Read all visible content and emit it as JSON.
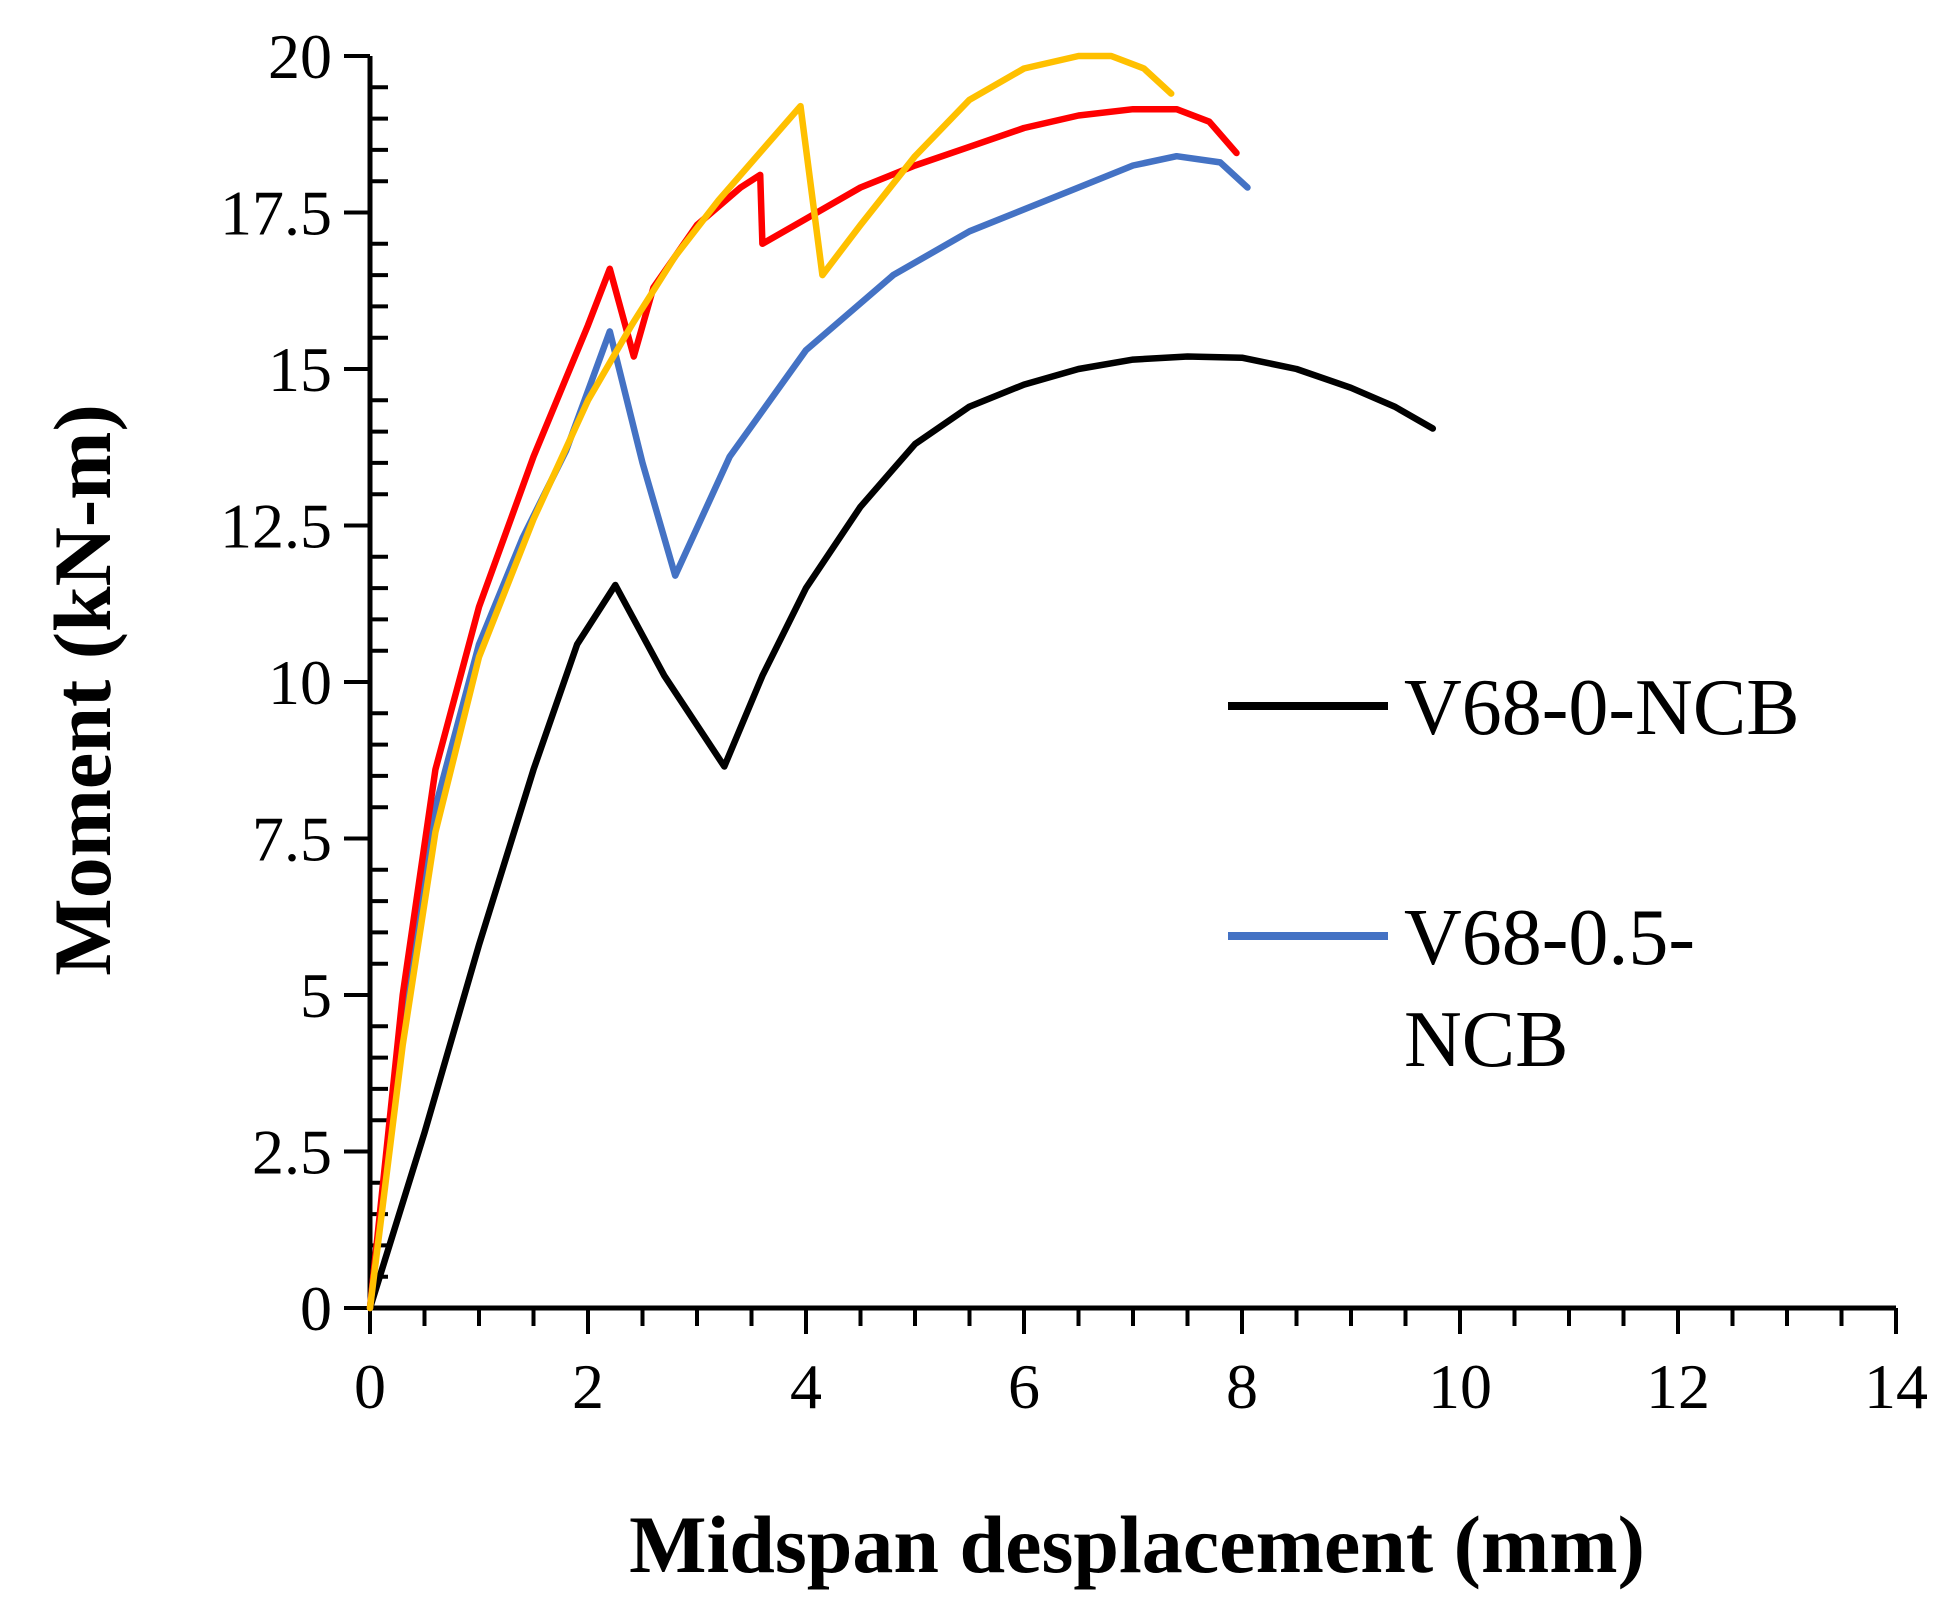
{
  "chart_data": {
    "type": "line",
    "title": "",
    "xlabel": "Midspan desplacement (mm)",
    "ylabel": "Moment (kN-m)",
    "xlim": [
      0,
      14
    ],
    "ylim": [
      0,
      20
    ],
    "x_ticks": [
      0,
      2,
      4,
      6,
      8,
      10,
      12,
      14
    ],
    "y_ticks": [
      0,
      2.5,
      5,
      7.5,
      10,
      12.5,
      15,
      17.5,
      20
    ],
    "x_tick_labels": [
      "0",
      "2",
      "4",
      "6",
      "8",
      "10",
      "12",
      "14"
    ],
    "y_tick_labels": [
      "0",
      "2.5",
      "5",
      "7.5",
      "10",
      "12.5",
      "15",
      "17.5",
      "20"
    ],
    "x_minor_step": 0.5,
    "y_minor_step": 0.5,
    "grid": false,
    "legend_position": "right",
    "legend": [
      {
        "series_index": 0,
        "lines": [
          "V68-0-NCB"
        ]
      },
      {
        "series_index": 1,
        "lines": [
          "V68-0.5-",
          "NCB"
        ]
      }
    ],
    "series": [
      {
        "name": "V68-0-NCB",
        "color": "#000000",
        "x": [
          0,
          0.5,
          1.0,
          1.5,
          1.9,
          2.25,
          2.7,
          3.25,
          3.6,
          4.0,
          4.5,
          5.0,
          5.5,
          6.0,
          6.5,
          7.0,
          7.5,
          8.0,
          8.5,
          9.0,
          9.4,
          9.75
        ],
        "y": [
          0,
          2.8,
          5.8,
          8.6,
          10.6,
          11.55,
          10.1,
          8.65,
          10.1,
          11.5,
          12.8,
          13.8,
          14.4,
          14.75,
          15.0,
          15.15,
          15.2,
          15.18,
          15.0,
          14.7,
          14.4,
          14.05
        ]
      },
      {
        "name": "V68-0.5-NCB",
        "color": "#4472C4",
        "x": [
          0,
          0.3,
          0.6,
          1.0,
          1.4,
          1.8,
          2.2,
          2.5,
          2.8,
          3.3,
          4.0,
          4.8,
          5.5,
          6.5,
          7.0,
          7.4,
          7.8,
          8.05
        ],
        "y": [
          0,
          4.8,
          8.0,
          10.6,
          12.3,
          13.7,
          15.6,
          13.5,
          11.7,
          13.6,
          15.3,
          16.5,
          17.2,
          17.9,
          18.25,
          18.4,
          18.3,
          17.9
        ]
      },
      {
        "name": "",
        "color": "#FF0000",
        "x": [
          0,
          0.3,
          0.6,
          1.0,
          1.5,
          2.0,
          2.2,
          2.42,
          2.6,
          3.0,
          3.4,
          3.58,
          3.6,
          4.0,
          4.5,
          5.0,
          5.5,
          6.0,
          6.5,
          7.0,
          7.4,
          7.7,
          7.95
        ],
        "y": [
          0,
          5.0,
          8.6,
          11.2,
          13.6,
          15.7,
          16.6,
          15.2,
          16.3,
          17.3,
          17.9,
          18.1,
          17.0,
          17.4,
          17.9,
          18.25,
          18.55,
          18.85,
          19.05,
          19.15,
          19.15,
          18.95,
          18.45
        ]
      },
      {
        "name": "",
        "color": "#FFC000",
        "x": [
          0,
          0.3,
          0.6,
          1.0,
          1.5,
          2.0,
          2.4,
          2.8,
          3.2,
          3.6,
          3.95,
          4.15,
          4.5,
          5.0,
          5.5,
          6.0,
          6.5,
          6.8,
          7.1,
          7.35
        ],
        "y": [
          0,
          4.2,
          7.6,
          10.4,
          12.6,
          14.5,
          15.7,
          16.8,
          17.7,
          18.5,
          19.2,
          16.5,
          17.3,
          18.4,
          19.3,
          19.8,
          20.0,
          20.0,
          19.8,
          19.4
        ]
      }
    ]
  }
}
